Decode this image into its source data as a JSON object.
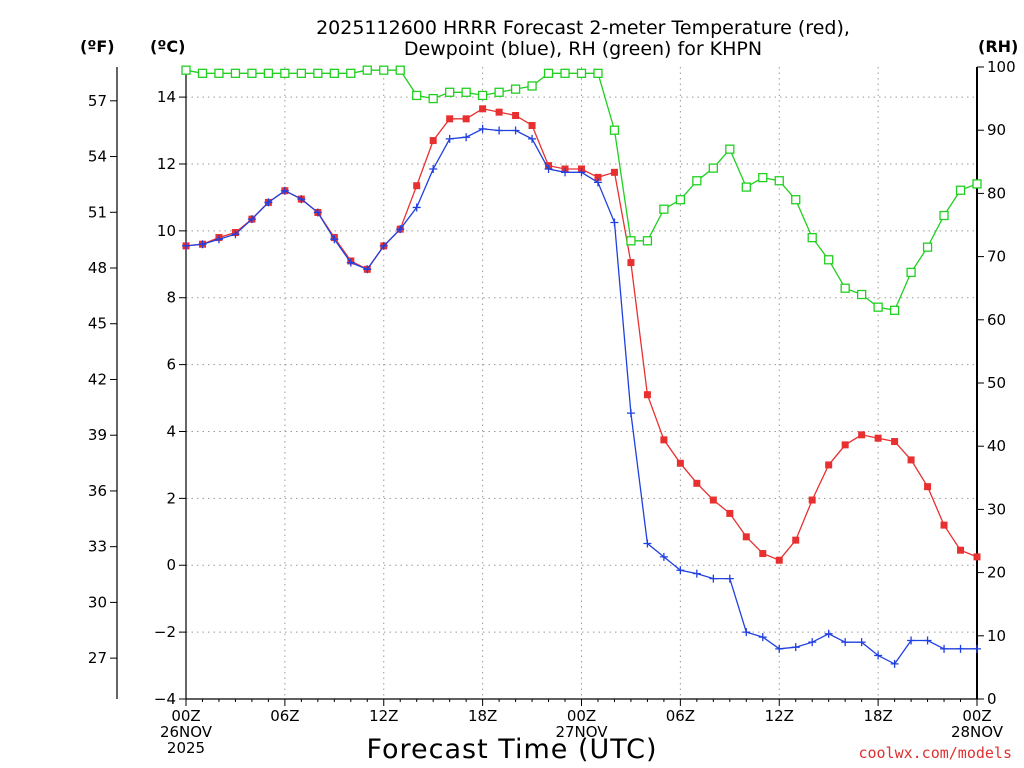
{
  "chart_data": {
    "type": "line",
    "title": [
      "2025112600 HRRR Forecast 2-meter Temperature (red),",
      "Dewpoint (blue), RH (green) for KHPN"
    ],
    "xlabel": "Forecast Time (UTC)",
    "credit": "coolwx.com/models",
    "units": {
      "fahrenheit": "(ºF)",
      "celsius": "(ºC)",
      "rh": "(RH)"
    },
    "x_range_hours": [
      0,
      48
    ],
    "x_ticks": [
      {
        "hour": 0,
        "lines": [
          "00Z",
          "26NOV",
          "2025"
        ]
      },
      {
        "hour": 6,
        "lines": [
          "06Z"
        ]
      },
      {
        "hour": 12,
        "lines": [
          "12Z"
        ]
      },
      {
        "hour": 18,
        "lines": [
          "18Z"
        ]
      },
      {
        "hour": 24,
        "lines": [
          "00Z",
          "27NOV"
        ]
      },
      {
        "hour": 30,
        "lines": [
          "06Z"
        ]
      },
      {
        "hour": 36,
        "lines": [
          "12Z"
        ]
      },
      {
        "hour": 42,
        "lines": [
          "18Z"
        ]
      },
      {
        "hour": 48,
        "lines": [
          "00Z",
          "28NOV"
        ]
      }
    ],
    "y_celsius": {
      "range": [
        -4,
        14.9
      ],
      "ticks": [
        -4,
        -2,
        0,
        2,
        4,
        6,
        8,
        10,
        12,
        14
      ],
      "tick_labels": [
        "−4",
        "−2",
        "0",
        "2",
        "4",
        "6",
        "8",
        "10",
        "12",
        "14"
      ]
    },
    "y_fahrenheit": {
      "ticks": [
        27,
        30,
        33,
        36,
        39,
        42,
        45,
        48,
        51,
        54,
        57
      ]
    },
    "y_rh": {
      "range": [
        0,
        100
      ],
      "ticks": [
        0,
        10,
        20,
        30,
        40,
        50,
        60,
        70,
        80,
        90,
        100
      ]
    },
    "series": [
      {
        "name": "Temperature",
        "axis": "celsius",
        "color": "#e83030",
        "marker": "filled-square",
        "values": [
          9.55,
          9.6,
          9.8,
          9.95,
          10.35,
          10.85,
          11.2,
          10.95,
          10.55,
          9.8,
          9.1,
          8.85,
          9.55,
          10.05,
          11.35,
          12.7,
          13.35,
          13.35,
          13.65,
          13.55,
          13.45,
          13.15,
          11.95,
          11.85,
          11.85,
          11.6,
          11.75,
          9.05,
          5.1,
          3.75,
          3.05,
          2.45,
          1.95,
          1.55,
          0.85,
          0.35,
          0.15,
          0.75,
          1.95,
          3.0,
          3.6,
          3.9,
          3.8,
          3.7,
          3.15,
          2.35,
          1.2,
          0.45,
          0.25
        ]
      },
      {
        "name": "Dewpoint",
        "axis": "celsius",
        "color": "#2040e0",
        "marker": "plus",
        "values": [
          9.55,
          9.6,
          9.75,
          9.9,
          10.35,
          10.85,
          11.2,
          10.95,
          10.55,
          9.75,
          9.05,
          8.85,
          9.55,
          10.05,
          10.7,
          11.85,
          12.75,
          12.8,
          13.05,
          13.0,
          13.0,
          12.75,
          11.85,
          11.75,
          11.75,
          11.45,
          10.25,
          4.55,
          0.65,
          0.25,
          -0.15,
          -0.25,
          -0.4,
          -0.4,
          -2.0,
          -2.15,
          -2.5,
          -2.45,
          -2.3,
          -2.05,
          -2.3,
          -2.3,
          -2.7,
          -2.95,
          -2.25,
          -2.25,
          -2.5,
          -2.5,
          -2.5
        ]
      },
      {
        "name": "RH",
        "axis": "rh",
        "color": "#20d020",
        "marker": "open-square",
        "values": [
          99.5,
          99.0,
          99.0,
          99.0,
          99.0,
          99.0,
          99.0,
          99.0,
          99.0,
          99.0,
          99.0,
          99.5,
          99.5,
          99.5,
          95.5,
          95.0,
          96.0,
          96.0,
          95.5,
          96.0,
          96.5,
          97.0,
          99.0,
          99.0,
          99.0,
          99.0,
          90.0,
          72.5,
          72.5,
          77.5,
          79.0,
          82.0,
          84.0,
          87.0,
          81.0,
          82.5,
          82.0,
          79.0,
          73.0,
          69.5,
          65.0,
          64.0,
          62.0,
          61.5,
          67.5,
          71.5,
          76.5,
          80.5,
          81.5
        ]
      }
    ]
  }
}
